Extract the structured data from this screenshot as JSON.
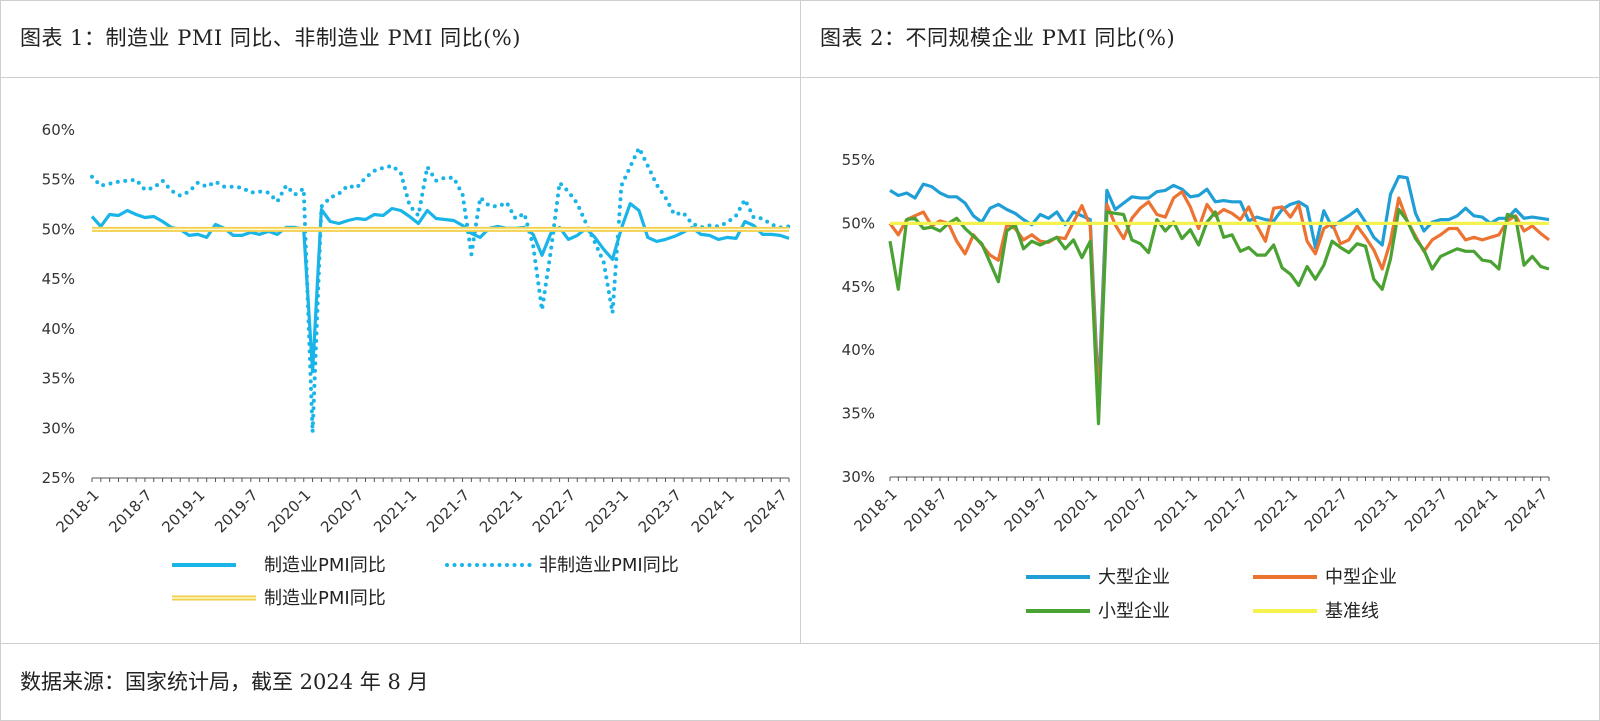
{
  "panels": [
    {
      "title": "图表 1：制造业 PMI 同比、非制造业 PMI 同比(%)"
    },
    {
      "title": "图表 2：不同规模企业 PMI 同比(%)"
    }
  ],
  "footer": {
    "source": "数据来源：国家统计局，截至 2024 年 8 月"
  },
  "chart_data": [
    {
      "type": "line",
      "title": "图表 1：制造业 PMI 同比、非制造业 PMI 同比(%)",
      "x_tick_labels": [
        "2018-1",
        "2018-7",
        "2019-1",
        "2019-7",
        "2020-1",
        "2020-7",
        "2021-1",
        "2021-7",
        "2022-1",
        "2022-7",
        "2023-1",
        "2023-7",
        "2024-1",
        "2024-7"
      ],
      "x_count": 80,
      "y_ticks": [
        25,
        30,
        35,
        40,
        45,
        50,
        55,
        60
      ],
      "y_tick_labels": [
        "25%",
        "30%",
        "35%",
        "40%",
        "45%",
        "50%",
        "55%",
        "60%"
      ],
      "ylim": [
        25,
        60
      ],
      "legend_position": "bottom",
      "series": [
        {
          "name": "制造业PMI同比",
          "style": "solid",
          "color": "#19b4e8",
          "values": [
            51.3,
            50.3,
            51.5,
            51.4,
            51.9,
            51.5,
            51.2,
            51.3,
            50.8,
            50.2,
            50.0,
            49.4,
            49.5,
            49.2,
            50.5,
            50.1,
            49.4,
            49.4,
            49.7,
            49.5,
            49.8,
            49.5,
            50.2,
            50.2,
            50.0,
            35.7,
            52.0,
            50.8,
            50.6,
            50.9,
            51.1,
            51.0,
            51.5,
            51.4,
            52.1,
            51.9,
            51.3,
            50.6,
            51.9,
            51.1,
            51.0,
            50.9,
            50.4,
            49.6,
            49.2,
            50.1,
            50.3,
            50.1,
            50.1,
            50.2,
            49.5,
            47.4,
            49.6,
            50.2,
            49.0,
            49.4,
            50.1,
            49.2,
            48.0,
            47.0,
            50.1,
            52.6,
            51.9,
            49.2,
            48.8,
            49.0,
            49.3,
            49.7,
            50.2,
            49.5,
            49.4,
            49.0,
            49.2,
            49.1,
            50.8,
            50.4,
            49.5,
            49.5,
            49.4,
            49.1
          ]
        },
        {
          "name": "非制造业PMI同比",
          "style": "dotted",
          "color": "#19b4e8",
          "values": [
            55.3,
            54.4,
            54.6,
            54.8,
            54.9,
            55.0,
            54.0,
            54.2,
            54.9,
            53.9,
            53.4,
            53.8,
            54.7,
            54.3,
            54.8,
            54.3,
            54.3,
            54.2,
            53.7,
            53.8,
            53.7,
            52.8,
            54.4,
            53.5,
            54.1,
            29.6,
            52.3,
            53.2,
            53.6,
            54.4,
            54.2,
            55.2,
            55.9,
            56.2,
            56.4,
            55.7,
            52.4,
            51.4,
            56.3,
            54.9,
            55.2,
            55.2,
            53.5,
            47.5,
            53.2,
            52.4,
            52.3,
            52.7,
            51.1,
            51.6,
            48.4,
            41.9,
            47.8,
            54.7,
            53.8,
            52.6,
            50.6,
            48.7,
            46.7,
            41.6,
            54.4,
            56.3,
            58.2,
            56.4,
            54.5,
            53.2,
            51.5,
            51.7,
            50.6,
            50.2,
            50.4,
            50.3,
            50.7,
            51.4,
            53.0,
            51.2,
            51.1,
            50.5,
            50.2,
            50.3
          ]
        },
        {
          "name": "制造业PMI同比",
          "style": "double",
          "color": "#f2cf4a",
          "values": [
            50,
            50,
            50,
            50,
            50,
            50,
            50,
            50,
            50,
            50,
            50,
            50,
            50,
            50,
            50,
            50,
            50,
            50,
            50,
            50,
            50,
            50,
            50,
            50,
            50,
            50,
            50,
            50,
            50,
            50,
            50,
            50,
            50,
            50,
            50,
            50,
            50,
            50,
            50,
            50,
            50,
            50,
            50,
            50,
            50,
            50,
            50,
            50,
            50,
            50,
            50,
            50,
            50,
            50,
            50,
            50,
            50,
            50,
            50,
            50,
            50,
            50,
            50,
            50,
            50,
            50,
            50,
            50,
            50,
            50,
            50,
            50,
            50,
            50,
            50,
            50,
            50,
            50,
            50,
            50
          ]
        }
      ]
    },
    {
      "type": "line",
      "title": "图表 2：不同规模企业 PMI 同比(%)",
      "x_tick_labels": [
        "2018-1",
        "2018-7",
        "2019-1",
        "2019-7",
        "2020-1",
        "2020-7",
        "2021-1",
        "2021-7",
        "2022-1",
        "2022-7",
        "2023-1",
        "2023-7",
        "2024-1",
        "2024-7"
      ],
      "x_count": 80,
      "y_ticks": [
        30,
        35,
        40,
        45,
        50,
        55
      ],
      "y_tick_labels": [
        "30%",
        "35%",
        "40%",
        "45%",
        "50%",
        "55%"
      ],
      "ylim": [
        30,
        55
      ],
      "legend_position": "bottom",
      "series": [
        {
          "name": "大型企业",
          "style": "solid",
          "color": "#1f9fd6",
          "values": [
            52.6,
            52.2,
            52.4,
            52.0,
            53.1,
            52.9,
            52.4,
            52.1,
            52.1,
            51.6,
            50.6,
            50.1,
            51.2,
            51.5,
            51.1,
            50.8,
            50.3,
            49.9,
            50.7,
            50.4,
            50.9,
            49.9,
            50.9,
            50.6,
            50.3,
            36.5,
            52.6,
            51.1,
            51.6,
            52.1,
            52.0,
            52.0,
            52.5,
            52.6,
            53.0,
            52.7,
            52.1,
            52.2,
            52.7,
            51.7,
            51.8,
            51.7,
            51.7,
            50.2,
            50.5,
            50.3,
            50.2,
            51.1,
            51.5,
            51.7,
            51.3,
            48.1,
            51.0,
            49.7,
            50.2,
            50.6,
            51.1,
            50.1,
            48.9,
            48.3,
            52.3,
            53.7,
            53.6,
            50.8,
            49.4,
            50.1,
            50.3,
            50.3,
            50.6,
            51.2,
            50.6,
            50.5,
            50.0,
            50.4,
            50.4,
            51.1,
            50.4,
            50.5,
            50.4,
            50.3
          ]
        },
        {
          "name": "中型企业",
          "style": "solid",
          "color": "#ec7331",
          "values": [
            50.0,
            49.1,
            50.3,
            50.6,
            50.9,
            49.8,
            50.2,
            50.0,
            48.6,
            47.6,
            49.1,
            48.3,
            47.5,
            47.1,
            49.9,
            49.6,
            48.7,
            49.1,
            48.6,
            48.5,
            48.9,
            48.8,
            50.1,
            51.4,
            49.8,
            35.6,
            51.5,
            49.9,
            48.8,
            50.4,
            51.2,
            51.7,
            50.7,
            50.5,
            52.0,
            52.5,
            51.3,
            49.6,
            51.5,
            50.6,
            51.1,
            50.8,
            50.3,
            51.3,
            49.8,
            48.6,
            51.2,
            51.3,
            50.5,
            51.5,
            48.6,
            47.6,
            49.6,
            50.0,
            48.4,
            48.7,
            49.8,
            48.9,
            47.9,
            46.4,
            48.6,
            52.0,
            50.2,
            49.0,
            47.8,
            48.7,
            49.1,
            49.6,
            49.6,
            48.7,
            48.9,
            48.7,
            48.9,
            49.1,
            50.2,
            50.6,
            49.4,
            49.8,
            49.2,
            48.7
          ]
        },
        {
          "name": "小型企业",
          "style": "solid",
          "color": "#4aa232",
          "values": [
            48.6,
            44.8,
            50.3,
            50.4,
            49.6,
            49.7,
            49.4,
            50.0,
            50.4,
            49.6,
            49.0,
            48.4,
            46.9,
            45.4,
            49.4,
            49.9,
            48.0,
            48.6,
            48.3,
            48.6,
            48.9,
            48.0,
            48.7,
            47.3,
            48.6,
            34.2,
            50.9,
            50.8,
            50.7,
            48.7,
            48.4,
            47.7,
            50.3,
            49.4,
            50.1,
            48.8,
            49.5,
            48.3,
            50.1,
            50.9,
            48.9,
            49.1,
            47.8,
            48.1,
            47.5,
            47.5,
            48.3,
            46.5,
            46.0,
            45.1,
            46.6,
            45.6,
            46.7,
            48.6,
            48.1,
            47.7,
            48.4,
            48.2,
            45.6,
            44.8,
            47.2,
            51.1,
            50.2,
            48.8,
            47.9,
            46.4,
            47.4,
            47.7,
            48.0,
            47.8,
            47.8,
            47.1,
            47.0,
            46.4,
            50.7,
            50.5,
            46.7,
            47.4,
            46.6,
            46.4
          ]
        },
        {
          "name": "基准线",
          "style": "solid",
          "color": "#f5f24e",
          "values": [
            50,
            50,
            50,
            50,
            50,
            50,
            50,
            50,
            50,
            50,
            50,
            50,
            50,
            50,
            50,
            50,
            50,
            50,
            50,
            50,
            50,
            50,
            50,
            50,
            50,
            50,
            50,
            50,
            50,
            50,
            50,
            50,
            50,
            50,
            50,
            50,
            50,
            50,
            50,
            50,
            50,
            50,
            50,
            50,
            50,
            50,
            50,
            50,
            50,
            50,
            50,
            50,
            50,
            50,
            50,
            50,
            50,
            50,
            50,
            50,
            50,
            50,
            50,
            50,
            50,
            50,
            50,
            50,
            50,
            50,
            50,
            50,
            50,
            50,
            50,
            50,
            50,
            50,
            50,
            50
          ]
        }
      ]
    }
  ]
}
